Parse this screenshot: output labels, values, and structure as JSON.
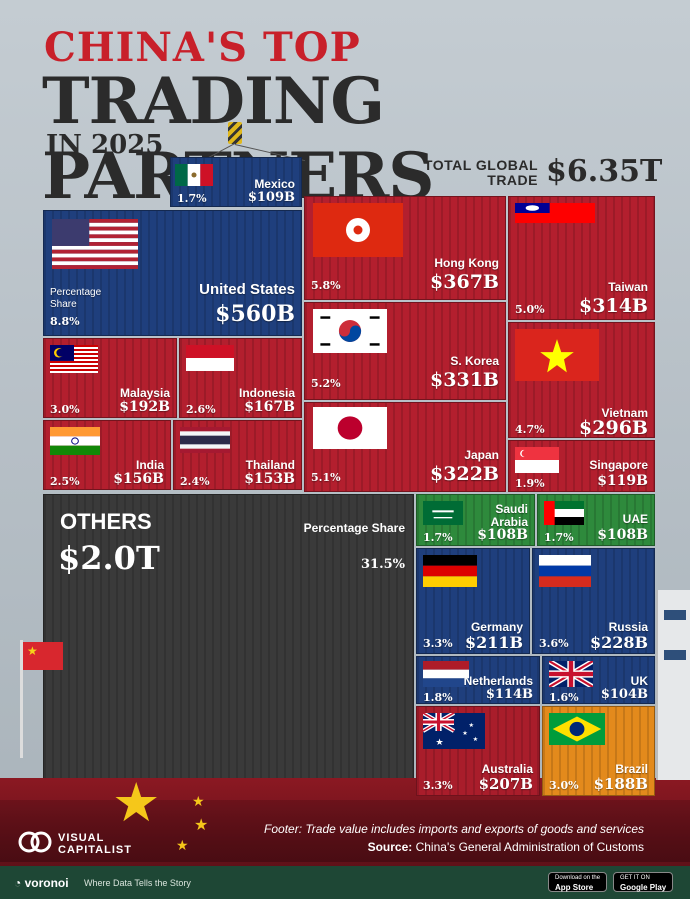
{
  "title_line1": "CHINA'S TOP",
  "title_line2": "TRADING PARTNERS",
  "title_line3": "IN 2025",
  "total_label": "TOTAL GLOBAL TRADE",
  "total_value": "$6.35T",
  "percentage_share_label": "Percentage Share",
  "others": {
    "title": "OTHERS",
    "value": "$2.0T",
    "share_label": "Percentage Share",
    "pct": "31.5%"
  },
  "chart_data": {
    "type": "table",
    "title": "CHINA'S TOP TRADING PARTNERS IN 2025",
    "unit": "trade value",
    "total": "$6.35T",
    "rows": [
      {
        "id": "mexico",
        "name": "Mexico",
        "value": "$109B",
        "pct": "1.7%"
      },
      {
        "id": "us",
        "name": "United States",
        "value": "$560B",
        "pct": "8.8%"
      },
      {
        "id": "hk",
        "name": "Hong Kong",
        "value": "$367B",
        "pct": "5.8%"
      },
      {
        "id": "tw",
        "name": "Taiwan",
        "value": "$314B",
        "pct": "5.0%"
      },
      {
        "id": "my",
        "name": "Malaysia",
        "value": "$192B",
        "pct": "3.0%"
      },
      {
        "id": "id",
        "name": "Indonesia",
        "value": "$167B",
        "pct": "2.6%"
      },
      {
        "id": "kr",
        "name": "S. Korea",
        "value": "$331B",
        "pct": "5.2%"
      },
      {
        "id": "vn",
        "name": "Vietnam",
        "value": "$296B",
        "pct": "4.7%"
      },
      {
        "id": "in",
        "name": "India",
        "value": "$156B",
        "pct": "2.5%"
      },
      {
        "id": "th",
        "name": "Thailand",
        "value": "$153B",
        "pct": "2.4%"
      },
      {
        "id": "jp",
        "name": "Japan",
        "value": "$322B",
        "pct": "5.1%"
      },
      {
        "id": "sg",
        "name": "Singapore",
        "value": "$119B",
        "pct": "1.9%"
      },
      {
        "id": "sa",
        "name": "Saudi Arabia",
        "value": "$108B",
        "pct": "1.7%"
      },
      {
        "id": "ae",
        "name": "UAE",
        "value": "$108B",
        "pct": "1.7%"
      },
      {
        "id": "de",
        "name": "Germany",
        "value": "$211B",
        "pct": "3.3%"
      },
      {
        "id": "ru",
        "name": "Russia",
        "value": "$228B",
        "pct": "3.6%"
      },
      {
        "id": "nl",
        "name": "Netherlands",
        "value": "$114B",
        "pct": "1.8%"
      },
      {
        "id": "uk",
        "name": "UK",
        "value": "$104B",
        "pct": "1.6%"
      },
      {
        "id": "au",
        "name": "Australia",
        "value": "$207B",
        "pct": "3.3%"
      },
      {
        "id": "br",
        "name": "Brazil",
        "value": "$188B",
        "pct": "3.0%"
      }
    ]
  },
  "colors": {
    "red": "#b31f2e",
    "blue": "#1f3f7d",
    "green": "#2e8a3c",
    "orange": "#e38a1c",
    "gray": "#3a3a3a",
    "title_red": "#c8202a"
  },
  "footer": {
    "note": "Footer: Trade value includes imports and exports of goods and services",
    "source_label": "Source:",
    "source_text": "China's General Administration of Customs"
  },
  "brand": {
    "name_line1": "VISUAL",
    "name_line2": "CAPITALIST",
    "voronoi": "voronoi",
    "tagline": "Where Data Tells the Story",
    "appstore_small": "Download on the",
    "appstore": "App Store",
    "gplay_small": "GET IT ON",
    "gplay": "Google Play"
  }
}
